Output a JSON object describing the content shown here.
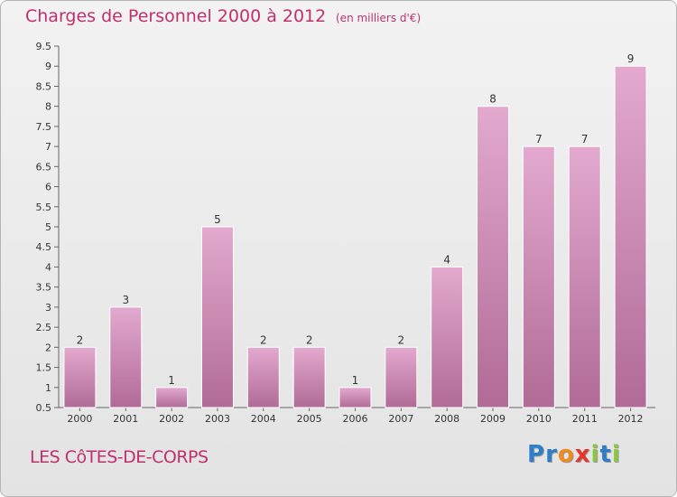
{
  "header": {
    "title": "Charges de Personnel 2000 à 2012",
    "subtitle": "(en milliers d'€)"
  },
  "footer": {
    "commune": "LES CôTES-DE-CORPS",
    "logo_letters": [
      {
        "ch": "P",
        "color": "#2e7dc9"
      },
      {
        "ch": "r",
        "color": "#2e7dc9"
      },
      {
        "ch": "o",
        "color": "#f08a1c"
      },
      {
        "ch": "x",
        "color": "#e6352b"
      },
      {
        "ch": "i",
        "color": "#8cc63f"
      },
      {
        "ch": "t",
        "color": "#2e7dc9"
      },
      {
        "ch": "i",
        "color": "#8cc63f"
      }
    ]
  },
  "chart_data": {
    "type": "bar",
    "title": "Charges de Personnel 2000 à 2012",
    "subtitle": "(en milliers d'€)",
    "categories": [
      "2000",
      "2001",
      "2002",
      "2003",
      "2004",
      "2005",
      "2006",
      "2007",
      "2008",
      "2009",
      "2010",
      "2011",
      "2012"
    ],
    "values": [
      2,
      3,
      1,
      5,
      2,
      2,
      1,
      2,
      4,
      8,
      7,
      7,
      9
    ],
    "ylim": [
      0.5,
      9.5
    ],
    "yticks": [
      "0.5",
      "1",
      "1.5",
      "2",
      "2.5",
      "3",
      "3.5",
      "4",
      "4.5",
      "5",
      "5.5",
      "6",
      "6.5",
      "7",
      "7.5",
      "8",
      "8.5",
      "9",
      "9.5"
    ],
    "grid": false,
    "bar_color": "#d9a0c4",
    "label_color": "#333333"
  }
}
